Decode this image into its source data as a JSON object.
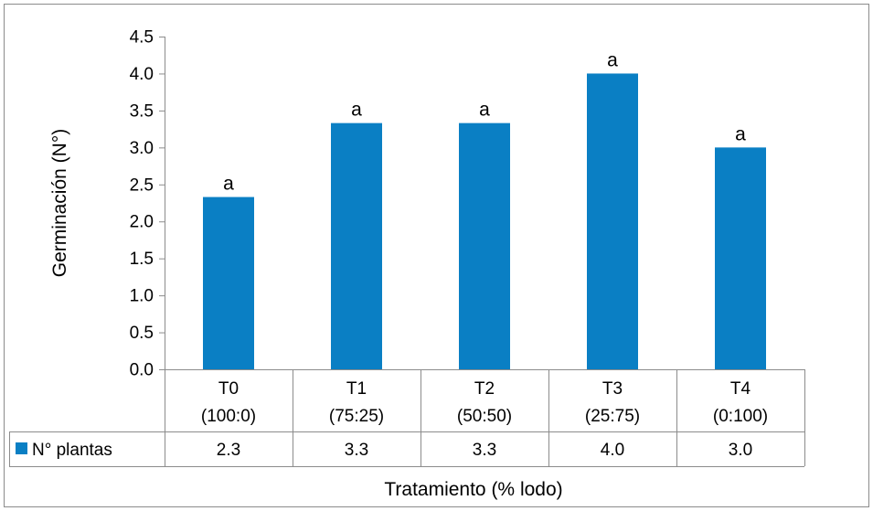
{
  "chart_data": {
    "type": "bar",
    "categories": [
      {
        "line1": "T0",
        "line2": "(100:0)"
      },
      {
        "line1": "T1",
        "line2": "(75:25)"
      },
      {
        "line1": "T2",
        "line2": "(50:50)"
      },
      {
        "line1": "T3",
        "line2": "(25:75)"
      },
      {
        "line1": "T4",
        "line2": "(0:100)"
      }
    ],
    "series": [
      {
        "name": "N° plantas",
        "color": "#0a7fc4",
        "values": [
          2.33,
          3.33,
          3.33,
          4.0,
          3.0
        ],
        "table_values": [
          "2.3",
          "3.3",
          "3.3",
          "4.0",
          "3.0"
        ],
        "significance_letters": [
          "a",
          "a",
          "a",
          "a",
          "a"
        ]
      }
    ],
    "ylabel": "Germinación (N°)",
    "xlabel": "Tratamiento (% lodo)",
    "ylim": [
      0,
      4.5
    ],
    "yticks": [
      "0.0",
      "0.5",
      "1.0",
      "1.5",
      "2.0",
      "2.5",
      "3.0",
      "3.5",
      "4.0",
      "4.5"
    ],
    "grid": false,
    "legend": "data-table"
  }
}
